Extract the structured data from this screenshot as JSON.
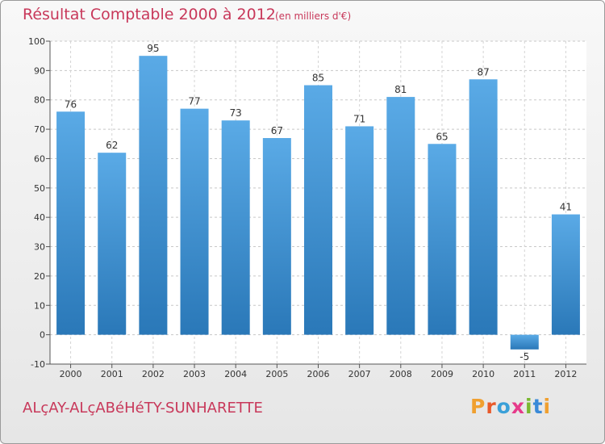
{
  "header": {
    "title": "Résultat Comptable 2000 à 2012",
    "subtitle": "(en milliers d'€)"
  },
  "footer": {
    "commune": "ALçAY-ALçABéHéTY-SUNHARETTE",
    "logo_letters": [
      "P",
      "r",
      "o",
      "x",
      "i",
      "t",
      "i"
    ],
    "logo_colors": [
      "#f0a030",
      "#e85a2a",
      "#3aa0d8",
      "#e63a8a",
      "#7ab830",
      "#3a8ad8",
      "#f0a030"
    ]
  },
  "chart_data": {
    "type": "bar",
    "title": "Résultat Comptable 2000 à 2012",
    "subtitle": "(en milliers d'€)",
    "xlabel": "",
    "ylabel": "",
    "categories": [
      "2000",
      "2001",
      "2002",
      "2003",
      "2004",
      "2005",
      "2006",
      "2007",
      "2008",
      "2009",
      "2010",
      "2011",
      "2012"
    ],
    "values": [
      76,
      62,
      95,
      77,
      73,
      67,
      85,
      71,
      81,
      65,
      87,
      -5,
      41
    ],
    "ylim": [
      -10,
      100
    ],
    "yticks": [
      -10,
      0,
      10,
      20,
      30,
      40,
      50,
      60,
      70,
      80,
      90,
      100
    ],
    "grid": "horizontal dashed",
    "bar_color_top": "#5aaae6",
    "bar_color_bottom": "#2a78b8"
  }
}
